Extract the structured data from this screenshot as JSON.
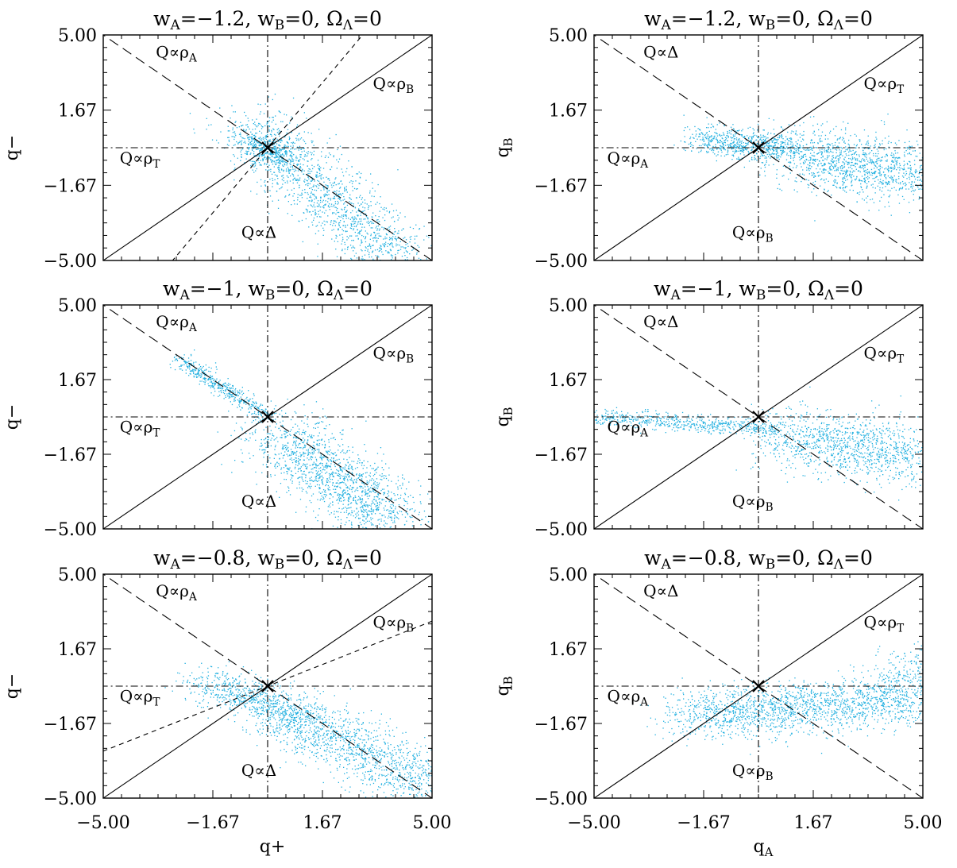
{
  "chart_data": [
    {
      "type": "scatter",
      "title": "w_A=−1.2, w_B=0, Ω_Λ=0",
      "title_parts": {
        "wa": "−1.2",
        "wb": "0",
        "om": "0"
      },
      "xlabel": "",
      "ylabel": "q−",
      "xlim": [
        -5,
        5
      ],
      "ylim": [
        -5,
        5
      ],
      "xticks": [
        "−5.00",
        "−1.67",
        "1.67",
        "5.00"
      ],
      "yticks": [
        "5.00",
        "1.67",
        "−1.67",
        "−5.00"
      ],
      "show_xticklabels": false,
      "point_color": "#22b0e0",
      "lines": [
        {
          "slope": 1,
          "style": "solid"
        },
        {
          "slope": -1,
          "style": "longdash"
        },
        {
          "slope": 0,
          "style": "dashdot"
        },
        {
          "vertical": true,
          "style": "dashdot"
        },
        {
          "slope": 1.73,
          "style": "shortdash"
        }
      ],
      "labels": [
        {
          "text": "Q∝ρ_A",
          "x": -3.4,
          "y": 4.0
        },
        {
          "text": "Q∝ρ_B",
          "x": 3.2,
          "y": 2.6
        },
        {
          "text": "Q∝ρ_T",
          "x": -4.5,
          "y": -0.7
        },
        {
          "text": "Q∝Δ",
          "x": -0.8,
          "y": -4.0
        }
      ],
      "cloud": [
        {
          "x0": -0.5,
          "y0": 1.0,
          "x1": 4.0,
          "y1": -5.0,
          "spread": 0.65,
          "n": 1500
        },
        {
          "x0": -0.6,
          "y0": 0.4,
          "x1": 0.6,
          "y1": -0.6,
          "spread": 0.3,
          "n": 300
        }
      ]
    },
    {
      "type": "scatter",
      "title": "w_A=−1.2, w_B=0, Ω_Λ=0",
      "title_parts": {
        "wa": "−1.2",
        "wb": "0",
        "om": "0"
      },
      "xlabel": "",
      "ylabel": "q_B",
      "xlim": [
        -5,
        5
      ],
      "ylim": [
        -5,
        5
      ],
      "xticks": [
        "−5.00",
        "−1.67",
        "1.67",
        "5.00"
      ],
      "yticks": [
        "5.00",
        "1.67",
        "−1.67",
        "−5.00"
      ],
      "show_xticklabels": false,
      "point_color": "#22b0e0",
      "lines": [
        {
          "slope": 1,
          "style": "solid"
        },
        {
          "slope": -1,
          "style": "longdash"
        },
        {
          "slope": 0,
          "style": "dashdot"
        },
        {
          "vertical": true,
          "style": "dashdot"
        }
      ],
      "labels": [
        {
          "text": "Q∝Δ",
          "x": -3.5,
          "y": 4.0
        },
        {
          "text": "Q∝ρ_T",
          "x": 3.2,
          "y": 2.6
        },
        {
          "text": "Q∝ρ_A",
          "x": -4.6,
          "y": -0.7
        },
        {
          "text": "Q∝ρ_B",
          "x": -0.8,
          "y": -4.0
        }
      ],
      "cloud": [
        {
          "x0": -1.8,
          "y0": 0.4,
          "x1": 1.0,
          "y1": 0.0,
          "spread": 0.35,
          "n": 700
        },
        {
          "x0": 1.0,
          "y0": -0.3,
          "x1": 5.0,
          "y1": -1.2,
          "spread": 0.7,
          "n": 1200
        }
      ]
    },
    {
      "type": "scatter",
      "title": "w_A=−1, w_B=0, Ω_Λ=0",
      "title_parts": {
        "wa": "−1",
        "wb": "0",
        "om": "0"
      },
      "xlabel": "",
      "ylabel": "q−",
      "xlim": [
        -5,
        5
      ],
      "ylim": [
        -5,
        5
      ],
      "xticks": [
        "−5.00",
        "−1.67",
        "1.67",
        "5.00"
      ],
      "yticks": [
        "5.00",
        "1.67",
        "−1.67",
        "−5.00"
      ],
      "show_xticklabels": false,
      "point_color": "#22b0e0",
      "lines": [
        {
          "slope": 1,
          "style": "solid"
        },
        {
          "slope": -1,
          "style": "longdash"
        },
        {
          "slope": 0,
          "style": "dashdot"
        },
        {
          "vertical": true,
          "style": "dashdot"
        }
      ],
      "labels": [
        {
          "text": "Q∝ρ_A",
          "x": -3.4,
          "y": 4.0
        },
        {
          "text": "Q∝ρ_B",
          "x": 3.2,
          "y": 2.6
        },
        {
          "text": "Q∝ρ_T",
          "x": -4.5,
          "y": -0.7
        },
        {
          "text": "Q∝Δ",
          "x": -0.8,
          "y": -4.0
        }
      ],
      "cloud": [
        {
          "x0": -2.7,
          "y0": 2.6,
          "x1": 0.0,
          "y1": 0.0,
          "spread": 0.18,
          "n": 450
        },
        {
          "x0": 0.3,
          "y0": -0.8,
          "x1": 3.8,
          "y1": -4.6,
          "spread": 0.7,
          "n": 1500
        }
      ]
    },
    {
      "type": "scatter",
      "title": "w_A=−1, w_B=0, Ω_Λ=0",
      "title_parts": {
        "wa": "−1",
        "wb": "0",
        "om": "0"
      },
      "xlabel": "",
      "ylabel": "q_B",
      "xlim": [
        -5,
        5
      ],
      "ylim": [
        -5,
        5
      ],
      "xticks": [
        "−5.00",
        "−1.67",
        "1.67",
        "5.00"
      ],
      "yticks": [
        "5.00",
        "1.67",
        "−1.67",
        "−5.00"
      ],
      "show_xticklabels": false,
      "point_color": "#22b0e0",
      "lines": [
        {
          "slope": 1,
          "style": "solid"
        },
        {
          "slope": -1,
          "style": "longdash"
        },
        {
          "slope": 0,
          "style": "dashdot"
        },
        {
          "vertical": true,
          "style": "dashdot"
        }
      ],
      "labels": [
        {
          "text": "Q∝Δ",
          "x": -3.5,
          "y": 4.0
        },
        {
          "text": "Q∝ρ_T",
          "x": 3.2,
          "y": 2.6
        },
        {
          "text": "Q∝ρ_A",
          "x": -4.6,
          "y": -0.7
        },
        {
          "text": "Q∝ρ_B",
          "x": -0.8,
          "y": -4.0
        }
      ],
      "cloud": [
        {
          "x0": -5.0,
          "y0": 0.0,
          "x1": 0.5,
          "y1": -0.5,
          "spread": 0.2,
          "n": 600
        },
        {
          "x0": 0.5,
          "y0": -0.8,
          "x1": 5.0,
          "y1": -1.8,
          "spread": 0.7,
          "n": 1200
        }
      ]
    },
    {
      "type": "scatter",
      "title": "w_A=−0.8, w_B=0, Ω_Λ=0",
      "title_parts": {
        "wa": "−0.8",
        "wb": "0",
        "om": "0"
      },
      "xlabel": "q+",
      "ylabel": "q−",
      "xlim": [
        -5,
        5
      ],
      "ylim": [
        -5,
        5
      ],
      "xticks": [
        "−5.00",
        "−1.67",
        "1.67",
        "5.00"
      ],
      "yticks": [
        "5.00",
        "1.67",
        "−1.67",
        "−5.00"
      ],
      "show_xticklabels": true,
      "point_color": "#22b0e0",
      "lines": [
        {
          "slope": 1,
          "style": "solid"
        },
        {
          "slope": -1,
          "style": "longdash"
        },
        {
          "slope": 0,
          "style": "dashdot"
        },
        {
          "vertical": true,
          "style": "dashdot"
        },
        {
          "slope": 0.58,
          "style": "shortdash"
        }
      ],
      "labels": [
        {
          "text": "Q∝ρ_A",
          "x": -3.4,
          "y": 4.0
        },
        {
          "text": "Q∝ρ_B",
          "x": 3.2,
          "y": 2.6
        },
        {
          "text": "Q∝ρ_T",
          "x": -4.5,
          "y": -0.7
        },
        {
          "text": "Q∝Δ",
          "x": -0.8,
          "y": -4.0
        }
      ],
      "cloud": [
        {
          "x0": -2.0,
          "y0": 0.3,
          "x1": 1.0,
          "y1": -1.4,
          "spread": 0.45,
          "n": 700
        },
        {
          "x0": 0.5,
          "y0": -1.2,
          "x1": 5.0,
          "y1": -4.5,
          "spread": 0.65,
          "n": 1300
        }
      ]
    },
    {
      "type": "scatter",
      "title": "w_A=−0.8, w_B=0, Ω_Λ=0",
      "title_parts": {
        "wa": "−0.8",
        "wb": "0",
        "om": "0"
      },
      "xlabel": "q_A",
      "ylabel": "q_B",
      "xlim": [
        -5,
        5
      ],
      "ylim": [
        -5,
        5
      ],
      "xticks": [
        "−5.00",
        "−1.67",
        "1.67",
        "5.00"
      ],
      "yticks": [
        "5.00",
        "1.67",
        "−1.67",
        "−5.00"
      ],
      "show_xticklabels": true,
      "point_color": "#22b0e0",
      "lines": [
        {
          "slope": 1,
          "style": "solid"
        },
        {
          "slope": -1,
          "style": "longdash"
        },
        {
          "slope": 0,
          "style": "dashdot"
        },
        {
          "vertical": true,
          "style": "dashdot"
        }
      ],
      "labels": [
        {
          "text": "Q∝Δ",
          "x": -3.5,
          "y": 4.0
        },
        {
          "text": "Q∝ρ_T",
          "x": 3.2,
          "y": 2.6
        },
        {
          "text": "Q∝ρ_A",
          "x": -4.6,
          "y": -0.7
        },
        {
          "text": "Q∝ρ_B",
          "x": -0.8,
          "y": -4.0
        }
      ],
      "cloud": [
        {
          "x0": -2.3,
          "y0": -1.3,
          "x1": 5.0,
          "y1": -0.6,
          "spread": 0.6,
          "n": 1800
        },
        {
          "x0": 4.0,
          "y0": 0.0,
          "x1": 5.0,
          "y1": 1.2,
          "spread": 0.5,
          "n": 200
        }
      ]
    }
  ]
}
